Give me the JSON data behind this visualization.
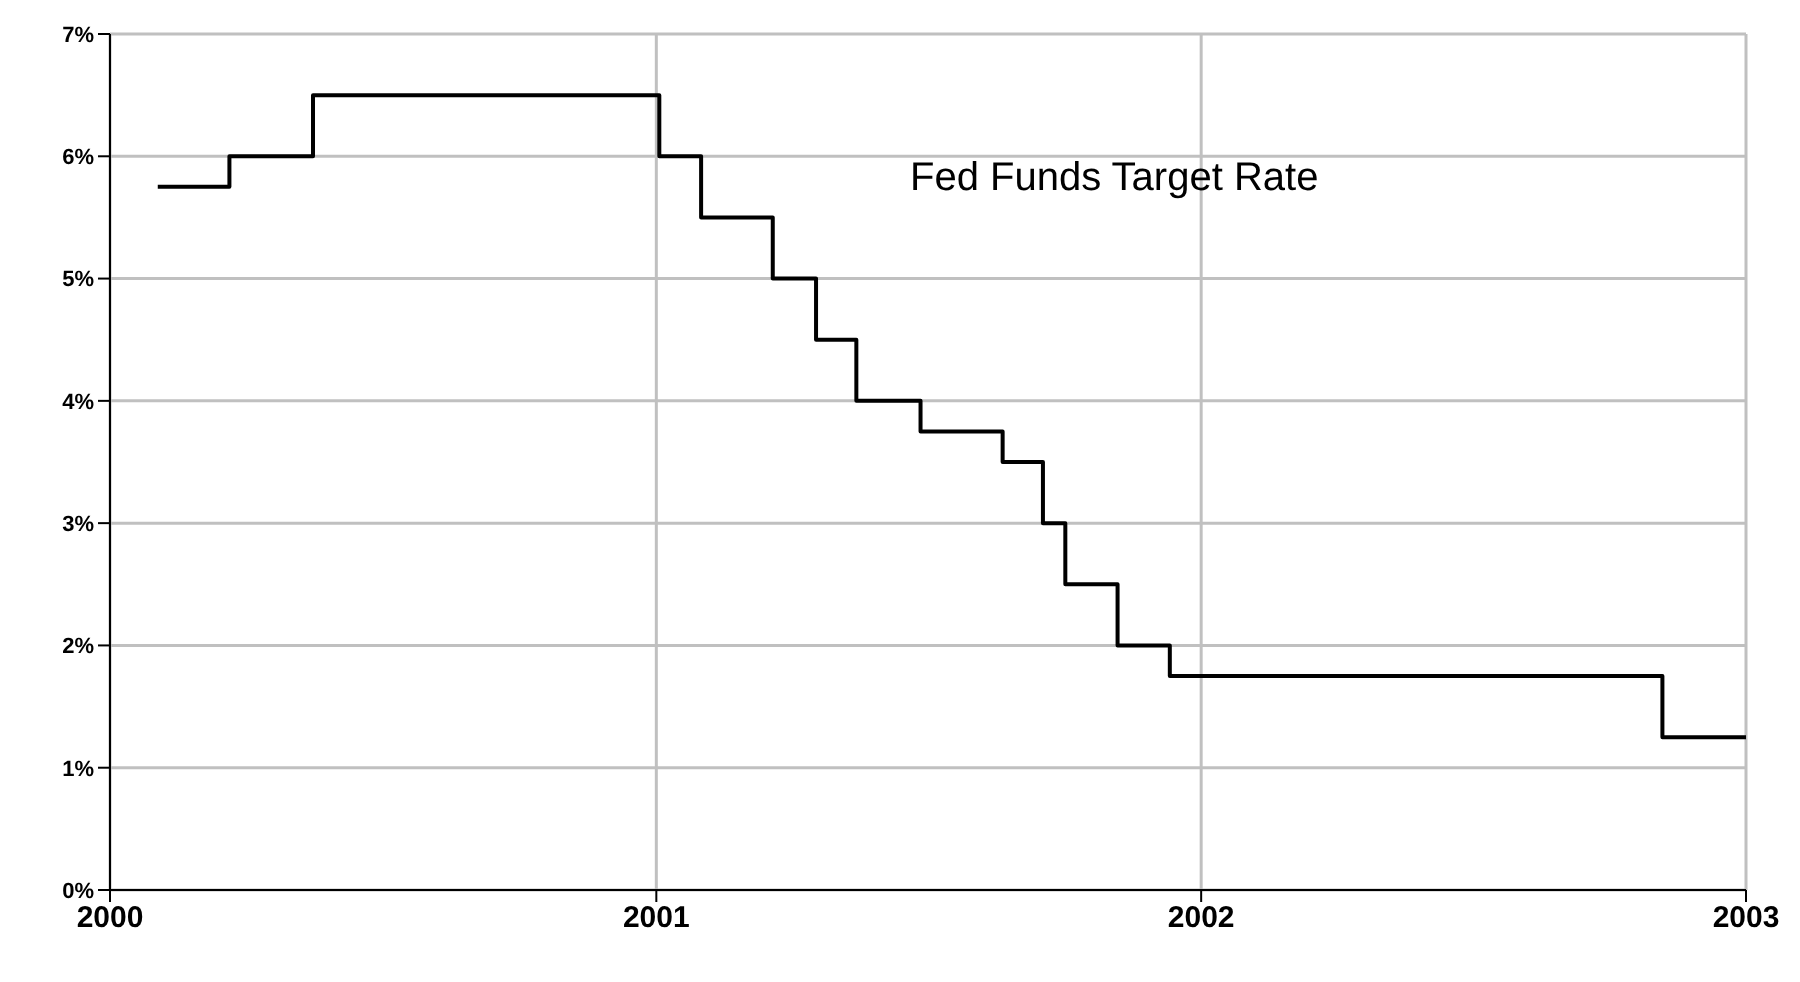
{
  "chart_data": {
    "type": "step",
    "x": [
      "2000-02-02",
      "2000-03-21",
      "2000-05-16",
      "2001-01-03",
      "2001-01-31",
      "2001-03-20",
      "2001-04-18",
      "2001-05-15",
      "2001-06-27",
      "2001-08-21",
      "2001-09-17",
      "2001-10-02",
      "2001-11-06",
      "2001-12-11",
      "2002-11-06",
      "2003-01-01"
    ],
    "series": [
      {
        "name": "Fed Funds Target Rate",
        "color": "#000000",
        "values": [
          5.75,
          6,
          6.5,
          6,
          5.5,
          5,
          4.5,
          4,
          3.75,
          3.5,
          3,
          2.5,
          2,
          1.75,
          1.25,
          1.25
        ]
      }
    ],
    "xlim": [
      "2000",
      "2003"
    ],
    "xticks": [
      "2000",
      "2001",
      "2002",
      "2003"
    ],
    "ylim": [
      0,
      7
    ],
    "yticks": [
      {
        "value": 0,
        "label": "0%"
      },
      {
        "value": 1,
        "label": "1%"
      },
      {
        "value": 2,
        "label": "2%"
      },
      {
        "value": 3,
        "label": "3%"
      },
      {
        "value": 4,
        "label": "4%"
      },
      {
        "value": 5,
        "label": "5%"
      },
      {
        "value": 6,
        "label": "6%"
      },
      {
        "value": 7,
        "label": "7%"
      }
    ],
    "grid": true,
    "marker": "none",
    "line_style": "solid"
  }
}
